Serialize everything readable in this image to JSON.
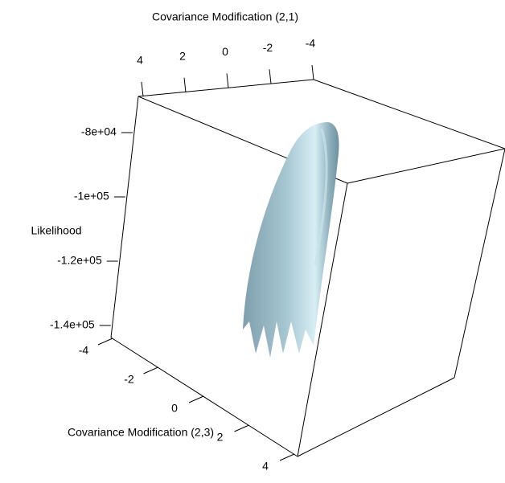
{
  "chart_data": {
    "type": "surface3d",
    "xlabel": "Covariance Modification (2,1)",
    "ylabel": "Covariance Modification (2,3)",
    "zlabel": "Likelihood",
    "xlim": [
      -4,
      4
    ],
    "xticks": [
      4,
      2,
      0,
      -2,
      -4
    ],
    "ylim": [
      -4,
      4
    ],
    "yticks": [
      -4,
      -2,
      0,
      2,
      4
    ],
    "zlim": [
      -143750,
      -68750
    ],
    "zticks": [
      {
        "value": -80000,
        "label": "-8e+04"
      },
      {
        "value": -100000,
        "label": "-1e+05"
      },
      {
        "value": -120000,
        "label": "-1.2e+05"
      },
      {
        "value": -140000,
        "label": "-1.4e+05"
      }
    ],
    "color": "#9dbfcc"
  }
}
